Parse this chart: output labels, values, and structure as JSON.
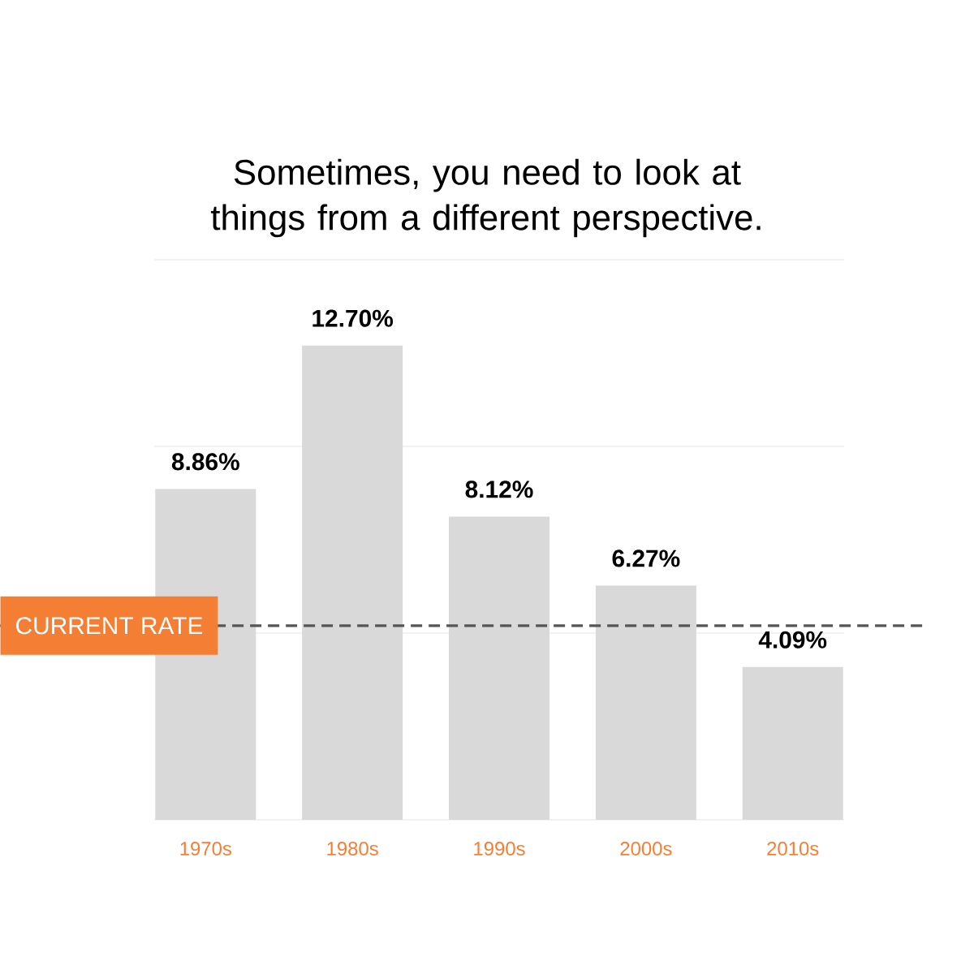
{
  "chart_data": {
    "type": "bar",
    "title": "Sometimes, you need to look at things from a different perspective.",
    "categories": [
      "1970s",
      "1980s",
      "1990s",
      "2000s",
      "2010s"
    ],
    "values": [
      8.86,
      12.7,
      8.12,
      6.27,
      4.09
    ],
    "value_labels": [
      "8.86%",
      "12.70%",
      "8.12%",
      "6.27%",
      "4.09%"
    ],
    "color": "#d9d9d9",
    "ylim": [
      0,
      15
    ],
    "yticks": [
      {
        "value": 0,
        "label": null
      },
      {
        "value": 5,
        "label": null
      },
      {
        "value": 10,
        "label": null
      },
      {
        "value": 15,
        "label": null
      }
    ],
    "grid": "y",
    "tick_labels": "x",
    "ref_lines": [
      {
        "axis": "y",
        "value": 5.2,
        "label": "CURRENT RATE",
        "color": "#555555",
        "line_style": "dashed"
      }
    ]
  }
}
